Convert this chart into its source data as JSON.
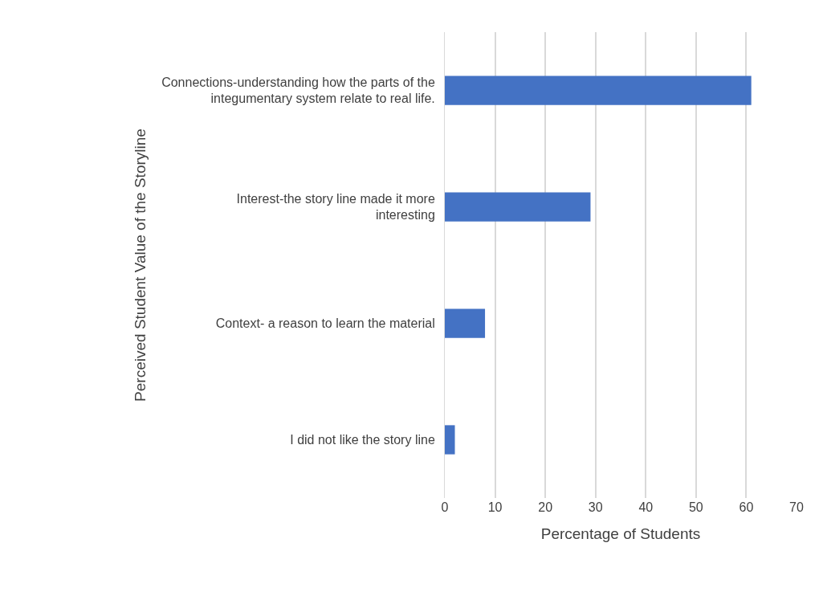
{
  "chart_data": {
    "type": "bar",
    "orientation": "horizontal",
    "xlabel": "Percentage of Students",
    "ylabel": "Perceived Student Value of the Storyline",
    "categories": [
      "Connections-understanding how the parts of the integumentary system relate to real life.",
      "Interest-the story line made it more interesting",
      "Context- a reason to learn the material",
      "I did not like the story line"
    ],
    "values": [
      61,
      29,
      8,
      2
    ],
    "color": "#4472c4",
    "xlim": [
      0,
      70
    ],
    "xticks": [
      0,
      10,
      20,
      30,
      40,
      50,
      60,
      70
    ],
    "grid": "x",
    "legend": false
  }
}
